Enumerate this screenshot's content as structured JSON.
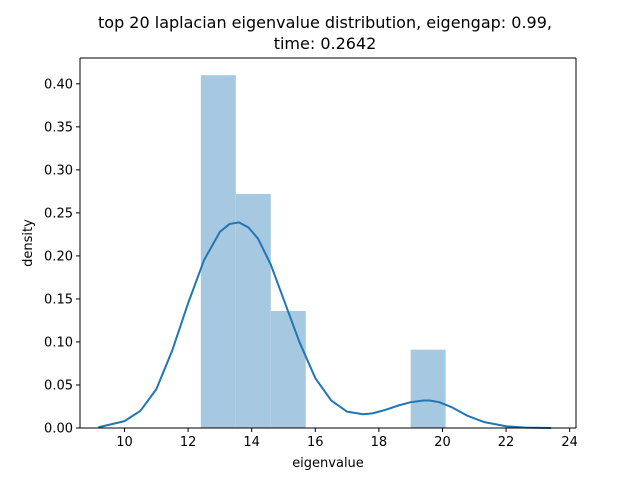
{
  "chart_data": {
    "type": "bar",
    "title_line1": "top 20 laplacian eigenvalue distribution, eigengap: 0.99,",
    "title_line2": "time: 0.2642",
    "xlabel": "eigenvalue",
    "ylabel": "density",
    "xlim": [
      8.6,
      24.2
    ],
    "ylim": [
      0.0,
      0.43
    ],
    "x_ticks": [
      10,
      12,
      14,
      16,
      18,
      20,
      22,
      24
    ],
    "x_tick_labels": [
      "10",
      "12",
      "14",
      "16",
      "18",
      "20",
      "22",
      "24"
    ],
    "y_ticks": [
      0.0,
      0.05,
      0.1,
      0.15,
      0.2,
      0.25,
      0.3,
      0.35,
      0.4
    ],
    "y_tick_labels": [
      "0.00",
      "0.05",
      "0.10",
      "0.15",
      "0.20",
      "0.25",
      "0.30",
      "0.35",
      "0.40"
    ],
    "grid": false,
    "histogram": {
      "color": "#a6c8e0",
      "bins": [
        {
          "x0": 12.4,
          "x1": 13.5,
          "density": 0.41
        },
        {
          "x0": 13.5,
          "x1": 14.6,
          "density": 0.272
        },
        {
          "x0": 14.6,
          "x1": 15.7,
          "density": 0.136
        },
        {
          "x0": 15.7,
          "x1": 16.8,
          "density": 0.0
        },
        {
          "x0": 16.8,
          "x1": 17.9,
          "density": 0.0
        },
        {
          "x0": 17.9,
          "x1": 19.0,
          "density": 0.0
        },
        {
          "x0": 19.0,
          "x1": 20.1,
          "density": 0.091
        }
      ]
    },
    "kde": {
      "color": "#1f77b4",
      "x": [
        9.2,
        10.0,
        10.5,
        11.0,
        11.5,
        12.0,
        12.5,
        13.0,
        13.3,
        13.6,
        13.9,
        14.2,
        14.6,
        15.0,
        15.5,
        16.0,
        16.5,
        17.0,
        17.5,
        17.8,
        18.2,
        18.6,
        19.0,
        19.4,
        19.6,
        19.9,
        20.3,
        20.8,
        21.3,
        22.0,
        22.6,
        23.4
      ],
      "y": [
        0.001,
        0.008,
        0.02,
        0.045,
        0.09,
        0.145,
        0.195,
        0.228,
        0.237,
        0.239,
        0.233,
        0.22,
        0.19,
        0.15,
        0.1,
        0.058,
        0.032,
        0.019,
        0.016,
        0.017,
        0.021,
        0.026,
        0.03,
        0.032,
        0.032,
        0.03,
        0.024,
        0.014,
        0.007,
        0.002,
        0.0005,
        0.0
      ]
    }
  }
}
